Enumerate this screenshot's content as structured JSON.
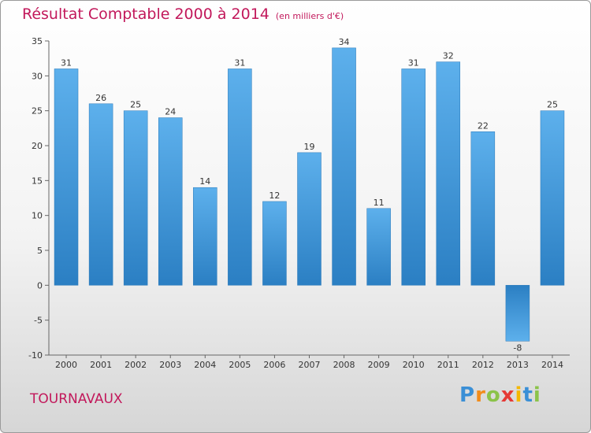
{
  "header": {
    "title": "Résultat Comptable 2000 à 2014",
    "unit": "(en milliers d'€)"
  },
  "footer": {
    "commune": "TOURNAVAUX",
    "logo_letters": [
      "P",
      "r",
      "o",
      "x",
      "i",
      "t",
      "i"
    ],
    "logo_colors": [
      "#3a8fd6",
      "#f28c1b",
      "#8bc34a",
      "#e53935",
      "#f5b800",
      "#3a8fd6",
      "#8bc34a"
    ]
  },
  "colors": {
    "bar_top": "#5db0ec",
    "bar_bottom": "#2b7fc3",
    "accent": "#c2185b"
  },
  "chart_data": {
    "type": "bar",
    "title": "Résultat Comptable 2000 à 2014",
    "xlabel": "",
    "ylabel": "",
    "categories": [
      "2000",
      "2001",
      "2002",
      "2003",
      "2004",
      "2005",
      "2006",
      "2007",
      "2008",
      "2009",
      "2010",
      "2011",
      "2012",
      "2013",
      "2014"
    ],
    "values": [
      31,
      26,
      25,
      24,
      14,
      31,
      12,
      19,
      34,
      11,
      31,
      32,
      22,
      -8,
      25
    ],
    "ylim": [
      -10,
      35
    ],
    "yticks": [
      -10,
      -5,
      0,
      5,
      10,
      15,
      20,
      25,
      30,
      35
    ],
    "grid": false
  }
}
